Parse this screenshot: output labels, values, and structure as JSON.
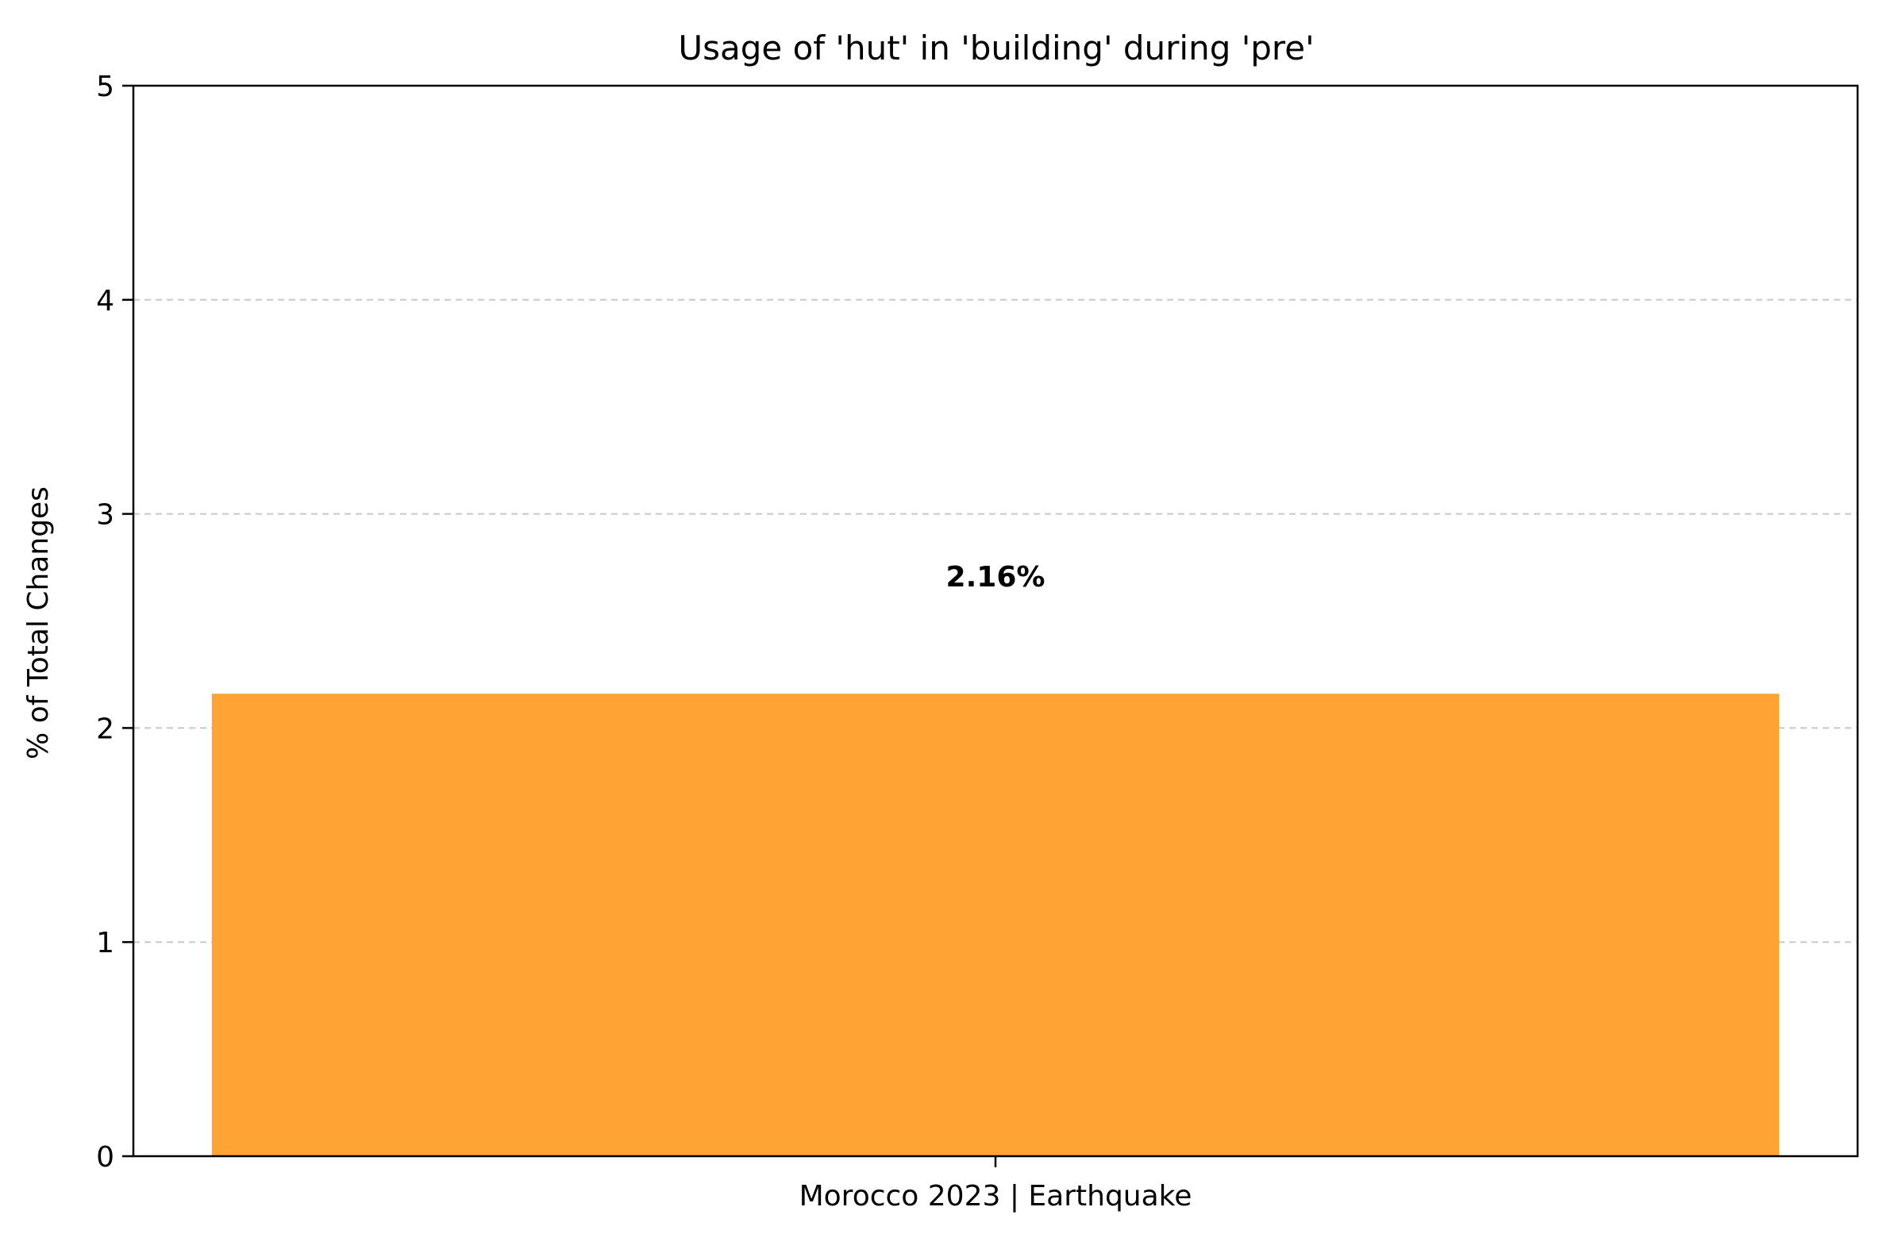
{
  "chart_data": {
    "type": "bar",
    "title": "Usage of 'hut' in 'building' during 'pre'",
    "xlabel": "",
    "ylabel": "% of Total Changes",
    "categories": [
      "Morocco 2023 | Earthquake"
    ],
    "values": [
      2.16
    ],
    "data_labels": [
      "2.16%"
    ],
    "ylim": [
      0,
      5
    ],
    "yticks": [
      0,
      1,
      2,
      3,
      4,
      5
    ],
    "ytick_labels": [
      "0",
      "1",
      "2",
      "3",
      "4",
      "5"
    ],
    "grid": {
      "y": true,
      "x": false,
      "style": "dashed"
    },
    "legend": "none",
    "colors": {
      "bar": "#ffa334",
      "grid": "#c8c8c8",
      "axis": "#000000"
    }
  }
}
